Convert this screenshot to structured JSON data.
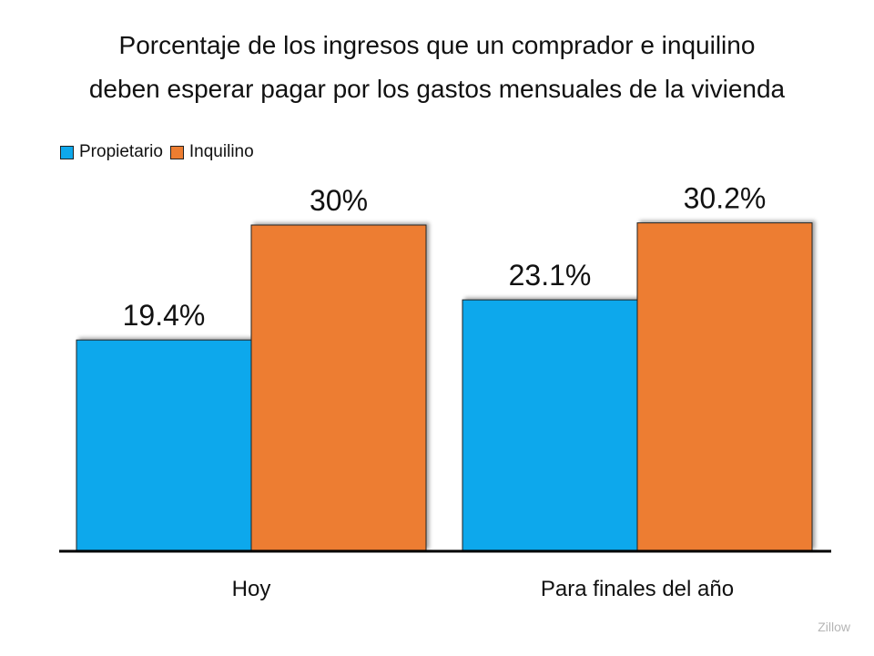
{
  "chart_data": {
    "type": "bar",
    "title": [
      "Porcentaje de los ingresos que un comprador e inquilino",
      "deben esperar pagar por los gastos mensuales de la vivienda"
    ],
    "categories": [
      "Hoy",
      "Para finales del año"
    ],
    "series": [
      {
        "name": "Propietario",
        "values": [
          19.4,
          23.1
        ],
        "labels": [
          "19.4%",
          "23.1%"
        ],
        "color": "#0EA8EC"
      },
      {
        "name": "Inquilino",
        "values": [
          30,
          30.2
        ],
        "labels": [
          "30%",
          "30.2%"
        ],
        "color": "#ED7D31"
      }
    ],
    "xlabel": "",
    "ylabel": "",
    "ylim": [
      0,
      35
    ],
    "grid": false,
    "legend": "top-left"
  },
  "source": "Zillow"
}
